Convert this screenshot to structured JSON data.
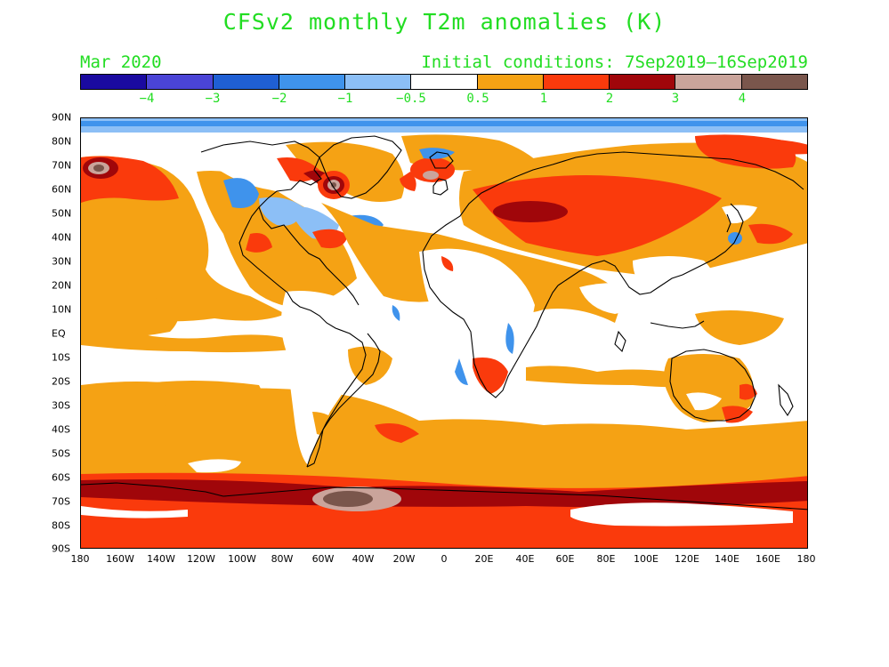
{
  "title": "CFSv2 monthly T2m anomalies (K)",
  "forecast_month": "Mar 2020",
  "initial_conditions": "Initial conditions: 7Sep2019–16Sep2019",
  "colorbar": {
    "colors": [
      "#1a0aa0",
      "#4a44d6",
      "#1f5fd4",
      "#3f93ec",
      "#8cbff6",
      "#ffffff",
      "#f5a214",
      "#fa3a0c",
      "#a0060a",
      "#caa49b",
      "#7a564c"
    ],
    "labels": [
      "−4",
      "−3",
      "−2",
      "−1",
      "−0.5",
      "0.5",
      "1",
      "2",
      "3",
      "4"
    ]
  },
  "latitude_labels": [
    "90N",
    "80N",
    "70N",
    "60N",
    "50N",
    "40N",
    "30N",
    "20N",
    "10N",
    "EQ",
    "10S",
    "20S",
    "30S",
    "40S",
    "50S",
    "60S",
    "70S",
    "80S",
    "90S"
  ],
  "longitude_labels": [
    "180",
    "160W",
    "140W",
    "120W",
    "100W",
    "80W",
    "60W",
    "40W",
    "20W",
    "0",
    "20E",
    "40E",
    "60E",
    "80E",
    "100E",
    "120E",
    "140E",
    "160E",
    "180"
  ]
}
